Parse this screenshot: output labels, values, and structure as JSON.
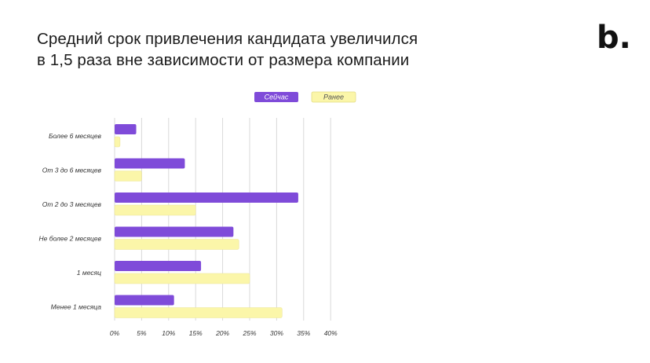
{
  "title_lines": [
    "Средний срок привлечения кандидата увеличился",
    "в 1,5 раза вне зависимости от размера компании"
  ],
  "logo": "b.",
  "chart_data": {
    "type": "bar",
    "orientation": "horizontal",
    "title": "Средний срок привлечения кандидата увеличился в 1,5 раза вне зависимости от размера компании",
    "categories": [
      "Более 6 месяцев",
      "От 3 до 6 месяцев",
      "От 2 до 3 месяцев",
      "Не более 2 месяцев",
      "1 месяц",
      "Менее 1 месяца"
    ],
    "series": [
      {
        "name": "Сейчас",
        "color": "#7f4bd9",
        "values": [
          4,
          13,
          34,
          22,
          16,
          11
        ]
      },
      {
        "name": "Ранее",
        "color": "#fbf6a9",
        "values": [
          1,
          5,
          15,
          23,
          25,
          31
        ]
      }
    ],
    "xlim": [
      0,
      40
    ],
    "xticks": [
      "0%",
      "5%",
      "10%",
      "15%",
      "20%",
      "25%",
      "30%",
      "35%",
      "40%"
    ],
    "legend_position": "top-center",
    "grid": true
  }
}
